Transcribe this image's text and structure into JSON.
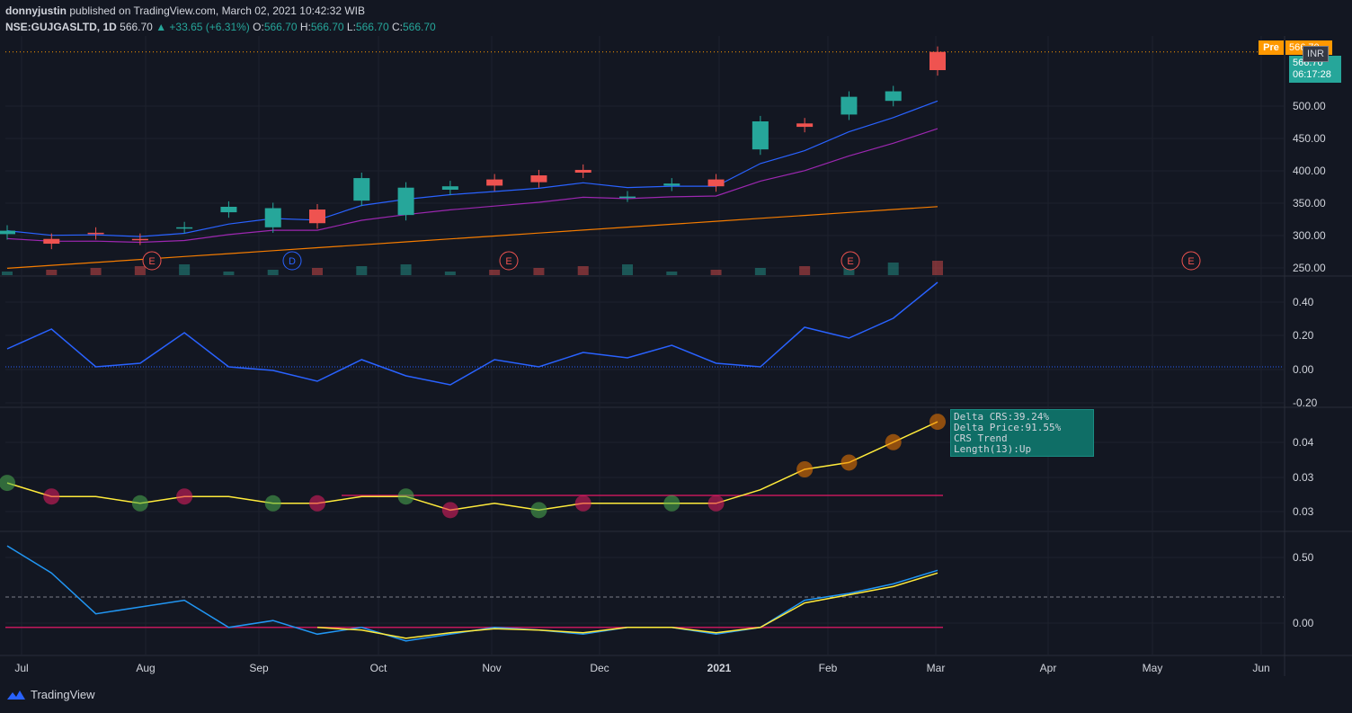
{
  "header": {
    "author": "donnyjustin",
    "published_text": "published on TradingView.com, March 02, 2021 10:42:32 WIB",
    "symbol": "NSE:GUJGASLTD, 1D",
    "last": "566.70",
    "change": "▲ +33.65 (+6.31%)",
    "o_label": "O:",
    "o_val": "566.70",
    "h_label": "H:",
    "h_val": "566.70",
    "l_label": "L:",
    "l_val": "566.70",
    "c_label": "C:",
    "c_val": "566.70"
  },
  "tags": {
    "pre_label": "Pre",
    "pre_value": "566.70",
    "currency": "INR",
    "price": "566.70",
    "countdown": "06:17:28"
  },
  "tooltip": {
    "line1": "Delta CRS:39.24%",
    "line2": "Delta Price:91.55%",
    "line3": "CRS Trend Length(13):Up"
  },
  "footer": {
    "brand": "TradingView"
  },
  "colors": {
    "background": "#131722",
    "up": "#26a69a",
    "down": "#ef5350",
    "ma_fast": "#2962ff",
    "ma_mid": "#9c27b0",
    "ma_slow": "#f57c00",
    "osc": "#2962ff",
    "crs_up": "#ffeb3b",
    "crs_down": "#e040fb",
    "ref_line": "#c2185b"
  },
  "chart_data": [
    {
      "type": "candlestick",
      "series": [
        {
          "name": "",
          "values": [
            [
              300,
              305
            ],
            [
              293,
              286
            ],
            [
              302,
              300
            ],
            [
              293,
              292
            ],
            [
              309,
              310
            ],
            [
              332,
              340
            ],
            [
              310,
              338
            ],
            [
              336,
              316
            ],
            [
              349,
              382
            ],
            [
              328,
              368
            ],
            [
              365,
              370
            ],
            [
              380,
              371
            ],
            [
              386,
              376
            ],
            [
              394,
              390
            ],
            [
              355,
              355
            ],
            [
              371,
              374
            ],
            [
              380,
              370
            ],
            [
              424,
              465
            ],
            [
              462,
              457
            ],
            [
              475,
              501
            ],
            [
              495,
              509
            ],
            [
              566.7,
              540
            ]
          ]
        }
      ],
      "ylim": [
        240,
        590
      ],
      "y_ticks": [
        "500.00",
        "450.00",
        "400.00",
        "350.00",
        "300.00",
        "250.00"
      ],
      "events": [
        {
          "label": "E",
          "date": "Aug"
        },
        {
          "label": "D",
          "date": "Sep"
        },
        {
          "label": "E",
          "date": "Nov"
        },
        {
          "label": "E",
          "date": "Feb"
        },
        {
          "label": "E",
          "date": "May"
        }
      ]
    },
    {
      "type": "line",
      "series": [
        {
          "name": "",
          "values": [
            0.1,
            0.21,
            0.0,
            0.02,
            0.19,
            0.0,
            -0.02,
            -0.08,
            0.04,
            -0.05,
            -0.1,
            0.04,
            0.0,
            0.08,
            0.05,
            0.12,
            0.02,
            0.0,
            0.22,
            0.16,
            0.27,
            0.47
          ]
        }
      ],
      "ylim": [
        -0.22,
        0.5
      ],
      "y_ticks": [
        "0.40",
        "0.20",
        "0.00",
        "-0.20"
      ]
    },
    {
      "type": "line",
      "series": [
        {
          "name": "",
          "values": [
            0.033,
            0.031,
            0.031,
            0.03,
            0.031,
            0.031,
            0.03,
            0.03,
            0.031,
            0.031,
            0.029,
            0.03,
            0.029,
            0.03,
            0.03,
            0.03,
            0.03,
            0.032,
            0.035,
            0.036,
            0.039,
            0.042
          ]
        }
      ],
      "ylim": [
        0.026,
        0.044
      ],
      "y_ticks": [
        "0.04",
        "0.03",
        "0.03"
      ]
    },
    {
      "type": "line",
      "series": [
        {
          "name": "",
          "values": [
            0.6,
            0.4,
            0.1,
            0.15,
            0.2,
            0.0,
            0.05,
            -0.05,
            0.0,
            -0.1,
            -0.05,
            0.0,
            -0.02,
            -0.05,
            0.0,
            0.0,
            -0.05,
            0.0,
            0.2,
            0.25,
            0.32,
            0.42
          ]
        },
        {
          "name": "",
          "values": [
            null,
            null,
            null,
            null,
            null,
            null,
            null,
            0.0,
            -0.02,
            -0.08,
            -0.04,
            -0.01,
            -0.02,
            -0.04,
            0.0,
            0.0,
            -0.04,
            0.0,
            0.18,
            0.24,
            0.3,
            0.4
          ]
        }
      ],
      "ylim": [
        -0.2,
        0.7
      ],
      "y_ticks": [
        "0.50",
        "0.00"
      ]
    }
  ],
  "x_axis": [
    "Jul",
    "Aug",
    "Sep",
    "Oct",
    "Nov",
    "Dec",
    "2021",
    "Feb",
    "Mar",
    "Apr",
    "May",
    "Jun"
  ]
}
